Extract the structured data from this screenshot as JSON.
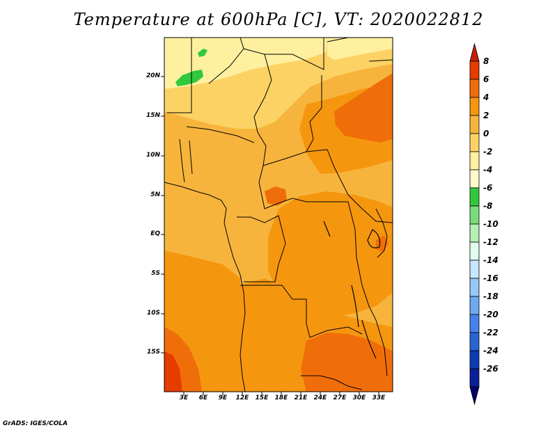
{
  "title": "Temperature at 600hPa [C], VT: 2020022812",
  "credit": "GrADS: IGES/COLA",
  "lat_labels": [
    "20N",
    "15N",
    "10N",
    "5N",
    "EQ",
    "5S",
    "10S",
    "15S"
  ],
  "lon_labels": [
    "3E",
    "6E",
    "9E",
    "12E",
    "15E",
    "18E",
    "21E",
    "24E",
    "27E",
    "30E",
    "33E"
  ],
  "colorbar": {
    "labels": [
      "8",
      "6",
      "4",
      "2",
      "0",
      "-2",
      "-4",
      "-6",
      "-8",
      "-10",
      "-12",
      "-14",
      "-16",
      "-18",
      "-20",
      "-22",
      "-24",
      "-26"
    ],
    "colors": [
      "#c81e0a",
      "#e63c00",
      "#f06e0a",
      "#f5960f",
      "#f7b43c",
      "#fcd264",
      "#fff0a0",
      "#fffaca",
      "#32c83c",
      "#78dc78",
      "#b4f0b4",
      "#e0fff0",
      "#c8e6ff",
      "#96c8f5",
      "#6eaaf0",
      "#4682eb",
      "#2864d2",
      "#0a3cb4",
      "#0a1e96",
      "#00006e"
    ]
  },
  "colors": {
    "deep_red": "#e63c00",
    "dark_orange": "#f06e0a",
    "orange": "#f5960f",
    "light_orange": "#f7b43c",
    "pale_yellow": "#fcd264",
    "cream": "#fff0a0",
    "green": "#32c83c"
  }
}
